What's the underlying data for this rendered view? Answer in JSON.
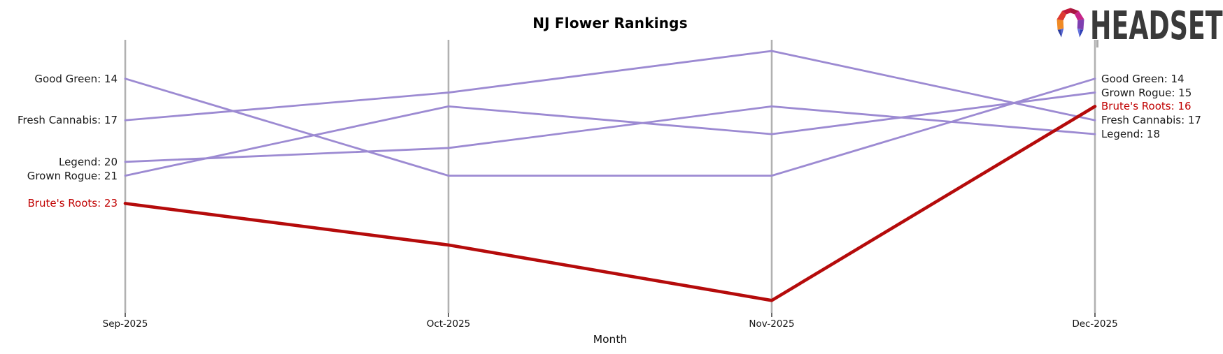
{
  "header": {
    "title": "NJ Flower Rankings"
  },
  "logo": {
    "text": "HEADSET",
    "palette": [
      "#F08A24",
      "#DD3A31",
      "#C21739",
      "#A81540",
      "#C62588",
      "#7E3FB0",
      "#2C3C9E",
      "#5563CE",
      "#6573DC",
      "#2E3FB5"
    ]
  },
  "chart_data": {
    "type": "line",
    "subtype": "bump-rank-chart",
    "title": "NJ Flower Rankings",
    "xlabel": "Month",
    "x": [
      "Sep-2025",
      "Oct-2025",
      "Nov-2025",
      "Dec-2025"
    ],
    "series": [
      {
        "name": "Good Green",
        "values": [
          14,
          21,
          21,
          14
        ],
        "color": "#9c8ad2",
        "emphasis": false
      },
      {
        "name": "Fresh Cannabis",
        "values": [
          17,
          15,
          12,
          17
        ],
        "color": "#9c8ad2",
        "emphasis": false
      },
      {
        "name": "Legend",
        "values": [
          20,
          19,
          16,
          18
        ],
        "color": "#9c8ad2",
        "emphasis": false
      },
      {
        "name": "Grown Rogue",
        "values": [
          21,
          16,
          18,
          15
        ],
        "color": "#9c8ad2",
        "emphasis": false
      },
      {
        "name": "Brute's Roots",
        "values": [
          23,
          26,
          30,
          16
        ],
        "color": "#b50b0b",
        "emphasis": true
      }
    ],
    "rank_range": [
      12,
      30
    ],
    "rank_axis": "values are ranks, increasing downward, no visible y axis",
    "grid": false,
    "legend_position": "labels at line endpoints on both sides"
  },
  "left_labels": [
    {
      "text": "Good Green: 14",
      "rank": 14,
      "color": "#1a1a1a"
    },
    {
      "text": "Fresh Cannabis: 17",
      "rank": 17,
      "color": "#1a1a1a"
    },
    {
      "text": "Legend: 20",
      "rank": 20,
      "color": "#1a1a1a"
    },
    {
      "text": "Grown Rogue: 21",
      "rank": 21,
      "color": "#1a1a1a"
    },
    {
      "text": "Brute's Roots: 23",
      "rank": 23,
      "color": "#c00000"
    }
  ],
  "right_labels": [
    {
      "text": "Good Green: 14",
      "rank": 14,
      "color": "#1a1a1a"
    },
    {
      "text": "Grown Rogue: 15",
      "rank": 15,
      "color": "#1a1a1a"
    },
    {
      "text": "Brute's Roots: 16",
      "rank": 16,
      "color": "#c00000"
    },
    {
      "text": "Fresh Cannabis: 17",
      "rank": 17,
      "color": "#1a1a1a"
    },
    {
      "text": "Legend: 18",
      "rank": 18,
      "color": "#1a1a1a"
    }
  ],
  "colors": {
    "series_default": "#9c8ad2",
    "highlight": "#b50b0b",
    "axis_line": "#b1b1b1",
    "tick": "#262626",
    "label_text": "#1a1a1a",
    "logo_text": "#3a3a3a",
    "background": "#ffffff"
  }
}
